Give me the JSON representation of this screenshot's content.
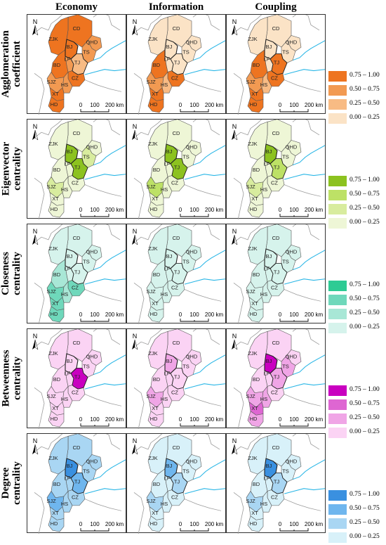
{
  "columns": [
    "Economy",
    "Information",
    "Coupling"
  ],
  "rows": [
    {
      "title_lines": [
        "Agglomeration",
        "coefficient"
      ],
      "palette": [
        "#fbe3c6",
        "#f8bb84",
        "#f29a52",
        "#ee7420"
      ]
    },
    {
      "title_lines": [
        "Eigenvector",
        "centrality"
      ],
      "palette": [
        "#eef6d6",
        "#d8ec9e",
        "#bde166",
        "#8cc21f"
      ]
    },
    {
      "title_lines": [
        "Closeness",
        "centrality"
      ],
      "palette": [
        "#d6f3ec",
        "#a8e7d6",
        "#6fd8bb",
        "#2ecb94"
      ]
    },
    {
      "title_lines": [
        "Betweenness",
        "centrality"
      ],
      "palette": [
        "#fbd3f4",
        "#f0a5e6",
        "#de66d2",
        "#c900c0"
      ]
    },
    {
      "title_lines": [
        "Degree",
        "centrality"
      ],
      "palette": [
        "#d8f1f9",
        "#a9d6f3",
        "#6fb6ee",
        "#3a90e0"
      ]
    }
  ],
  "legend_labels": [
    "0.75 – 1.00",
    "0.50 – 0.75",
    "0.25 – 0.50",
    "0.00 – 0.25"
  ],
  "city_labels": {
    "CD": "CD",
    "ZJK": "ZJK",
    "BJ": "BJ",
    "QHD": "QHD",
    "TS": "TS",
    "LF": "LF",
    "TJ": "TJ",
    "BD": "BD",
    "CZ": "CZ",
    "SJZ": "SJZ",
    "HS": "HS",
    "XT": "XT",
    "HD": "HD"
  },
  "north_label": "N",
  "scale_labels": [
    "0",
    "100",
    "200 km"
  ],
  "values": [
    [
      {
        "CD": 3,
        "ZJK": 3,
        "BJ": 3,
        "QHD": 2,
        "TS": 2,
        "LF": 2,
        "TJ": 1,
        "BD": 3,
        "CZ": 3,
        "SJZ": 2,
        "HS": 2,
        "XT": 3,
        "HD": 3
      },
      {
        "CD": 0,
        "ZJK": 0,
        "BJ": 0,
        "QHD": 0,
        "TS": 0,
        "LF": 0,
        "TJ": 0,
        "BD": 3,
        "CZ": 3,
        "SJZ": 2,
        "HS": 1,
        "XT": 3,
        "HD": 3
      },
      {
        "CD": 0,
        "ZJK": 0,
        "BJ": 0,
        "QHD": 0,
        "TS": 0,
        "LF": 0,
        "TJ": 3,
        "BD": 3,
        "CZ": 3,
        "SJZ": 2,
        "HS": 1,
        "XT": 3,
        "HD": 3
      }
    ],
    [
      {
        "CD": 0,
        "ZJK": 0,
        "BJ": 3,
        "QHD": 0,
        "TS": 1,
        "LF": 0,
        "TJ": 3,
        "BD": 0,
        "CZ": 0,
        "SJZ": 1,
        "HS": 0,
        "XT": 0,
        "HD": 0
      },
      {
        "CD": 0,
        "ZJK": 0,
        "BJ": 3,
        "QHD": 0,
        "TS": 0,
        "LF": 0,
        "TJ": 3,
        "BD": 0,
        "CZ": 0,
        "SJZ": 2,
        "HS": 0,
        "XT": 0,
        "HD": 0
      },
      {
        "CD": 0,
        "ZJK": 0,
        "BJ": 3,
        "QHD": 0,
        "TS": 0,
        "LF": 0,
        "TJ": 2,
        "BD": 0,
        "CZ": 0,
        "SJZ": 1,
        "HS": 0,
        "XT": 0,
        "HD": 0
      }
    ],
    [
      {
        "CD": 0,
        "ZJK": 0,
        "BJ": 0,
        "QHD": 0,
        "TS": 0,
        "LF": 0,
        "TJ": 0,
        "BD": 1,
        "CZ": 2,
        "SJZ": 2,
        "HS": 1,
        "XT": 2,
        "HD": 2
      },
      {
        "CD": 0,
        "ZJK": 0,
        "BJ": 0,
        "QHD": 0,
        "TS": 0,
        "LF": 0,
        "TJ": 0,
        "BD": 0,
        "CZ": 0,
        "SJZ": 0,
        "HS": 0,
        "XT": 0,
        "HD": 0
      },
      {
        "CD": 0,
        "ZJK": 0,
        "BJ": 0,
        "QHD": 0,
        "TS": 0,
        "LF": 0,
        "TJ": 0,
        "BD": 0,
        "CZ": 0,
        "SJZ": 0,
        "HS": 0,
        "XT": 0,
        "HD": 0
      }
    ],
    [
      {
        "CD": 0,
        "ZJK": 0,
        "BJ": 0,
        "QHD": 0,
        "TS": 0,
        "LF": 0,
        "TJ": 3,
        "BD": 0,
        "CZ": 0,
        "SJZ": 0,
        "HS": 0,
        "XT": 0,
        "HD": 0
      },
      {
        "CD": 0,
        "ZJK": 0,
        "BJ": 1,
        "QHD": 0,
        "TS": 0,
        "LF": 0,
        "TJ": 0,
        "BD": 0,
        "CZ": 0,
        "SJZ": 1,
        "HS": 0,
        "XT": 0,
        "HD": 0
      },
      {
        "CD": 0,
        "ZJK": 0,
        "BJ": 3,
        "QHD": 0,
        "TS": 1,
        "LF": 0,
        "TJ": 1,
        "BD": 0,
        "CZ": 0,
        "SJZ": 1,
        "HS": 1,
        "XT": 2,
        "HD": 1
      }
    ],
    [
      {
        "CD": 1,
        "ZJK": 1,
        "BJ": 3,
        "QHD": 1,
        "TS": 1,
        "LF": 1,
        "TJ": 2,
        "BD": 1,
        "CZ": 1,
        "SJZ": 2,
        "HS": 1,
        "XT": 1,
        "HD": 1
      },
      {
        "CD": 0,
        "ZJK": 0,
        "BJ": 2,
        "QHD": 0,
        "TS": 0,
        "LF": 0,
        "TJ": 1,
        "BD": 0,
        "CZ": 0,
        "SJZ": 1,
        "HS": 0,
        "XT": 0,
        "HD": 0
      },
      {
        "CD": 0,
        "ZJK": 0,
        "BJ": 3,
        "QHD": 0,
        "TS": 0,
        "LF": 0,
        "TJ": 1,
        "BD": 0,
        "CZ": 0,
        "SJZ": 1,
        "HS": 0,
        "XT": 0,
        "HD": 0
      }
    ]
  ]
}
